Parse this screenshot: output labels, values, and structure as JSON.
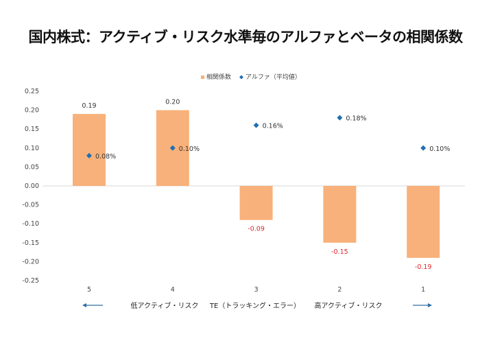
{
  "chart_data": {
    "type": "bar",
    "title": "国内株式：アクティブ・リスク水準毎のアルファとベータの相関係数",
    "categories": [
      "5",
      "4",
      "3",
      "2",
      "1"
    ],
    "series": [
      {
        "name": "相関係数",
        "kind": "bar",
        "color": "#F8B17A",
        "values": [
          0.19,
          0.2,
          -0.09,
          -0.15,
          -0.19
        ],
        "labels": [
          "0.19",
          "0.20",
          "-0.09",
          "-0.15",
          "-0.19"
        ]
      },
      {
        "name": "アルファ（平均値）",
        "kind": "scatter",
        "marker": "diamond",
        "color": "#1F6FB4",
        "values": [
          0.08,
          0.1,
          0.16,
          0.18,
          0.1
        ],
        "labels": [
          "0.08%",
          "0.10%",
          "0.16%",
          "0.18%",
          "0.10%"
        ]
      }
    ],
    "ylim": [
      -0.25,
      0.25
    ],
    "yticks": [
      "0.25",
      "0.20",
      "0.15",
      "0.10",
      "0.05",
      "0.00",
      "-0.05",
      "-0.10",
      "-0.15",
      "-0.20",
      "-0.25"
    ],
    "grid": false,
    "legend": "top-center",
    "negative_label_color": "#E0262B",
    "annotations": {
      "low": "低アクティブ・リスク",
      "mid": "TE（トラッキング・エラー）",
      "high": "高アクティブ・リスク",
      "arrow_color": "#2E6CA4"
    }
  }
}
